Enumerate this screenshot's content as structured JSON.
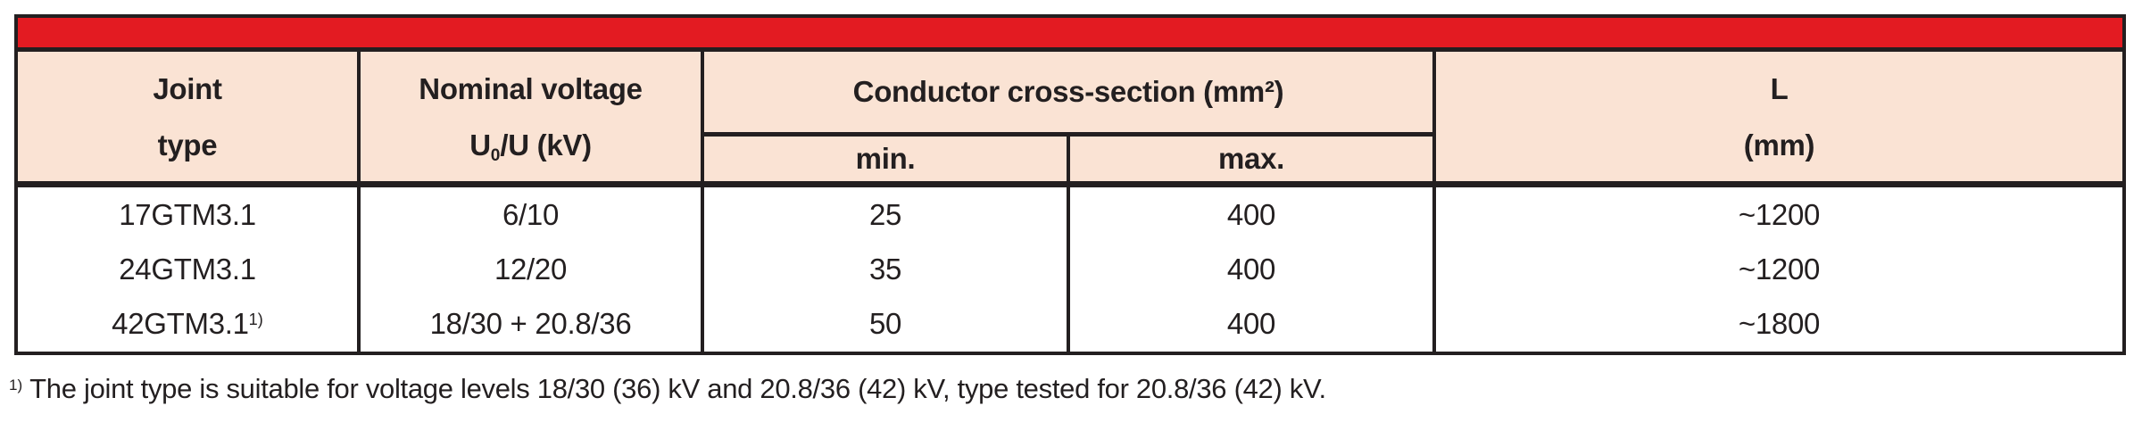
{
  "colors": {
    "banner_red": "#e31b22",
    "header_peach": "#fae3d4",
    "border_black": "#231f20",
    "text": "#231f20"
  },
  "table": {
    "header": {
      "joint_type_line1": "Joint",
      "joint_type_line2": "type",
      "nominal_voltage_line1": "Nominal voltage",
      "nominal_voltage_sym_pre": "U",
      "nominal_voltage_sym_sub": "0",
      "nominal_voltage_sym_post": "/U (kV)",
      "conductor_cross_section": "Conductor cross-section (mm²)",
      "min": "min.",
      "max": "max.",
      "length_line1": "L",
      "length_line2": "(mm)"
    },
    "rows": [
      {
        "joint_type": "17GTM3.1",
        "joint_type_sup": "",
        "nominal_voltage": "6/10",
        "cross_section_min": "25",
        "cross_section_max": "400",
        "length": "~1200"
      },
      {
        "joint_type": "24GTM3.1",
        "joint_type_sup": "",
        "nominal_voltage": "12/20",
        "cross_section_min": "35",
        "cross_section_max": "400",
        "length": "~1200"
      },
      {
        "joint_type": "42GTM3.1",
        "joint_type_sup": "1)",
        "nominal_voltage": "18/30 + 20.8/36",
        "cross_section_min": "50",
        "cross_section_max": "400",
        "length": "~1800"
      }
    ]
  },
  "footnote": {
    "sup": "1)",
    "text": "The joint type is suitable for voltage levels 18/30 (36) kV and 20.8/36 (42) kV, type tested for 20.8/36 (42) kV."
  }
}
